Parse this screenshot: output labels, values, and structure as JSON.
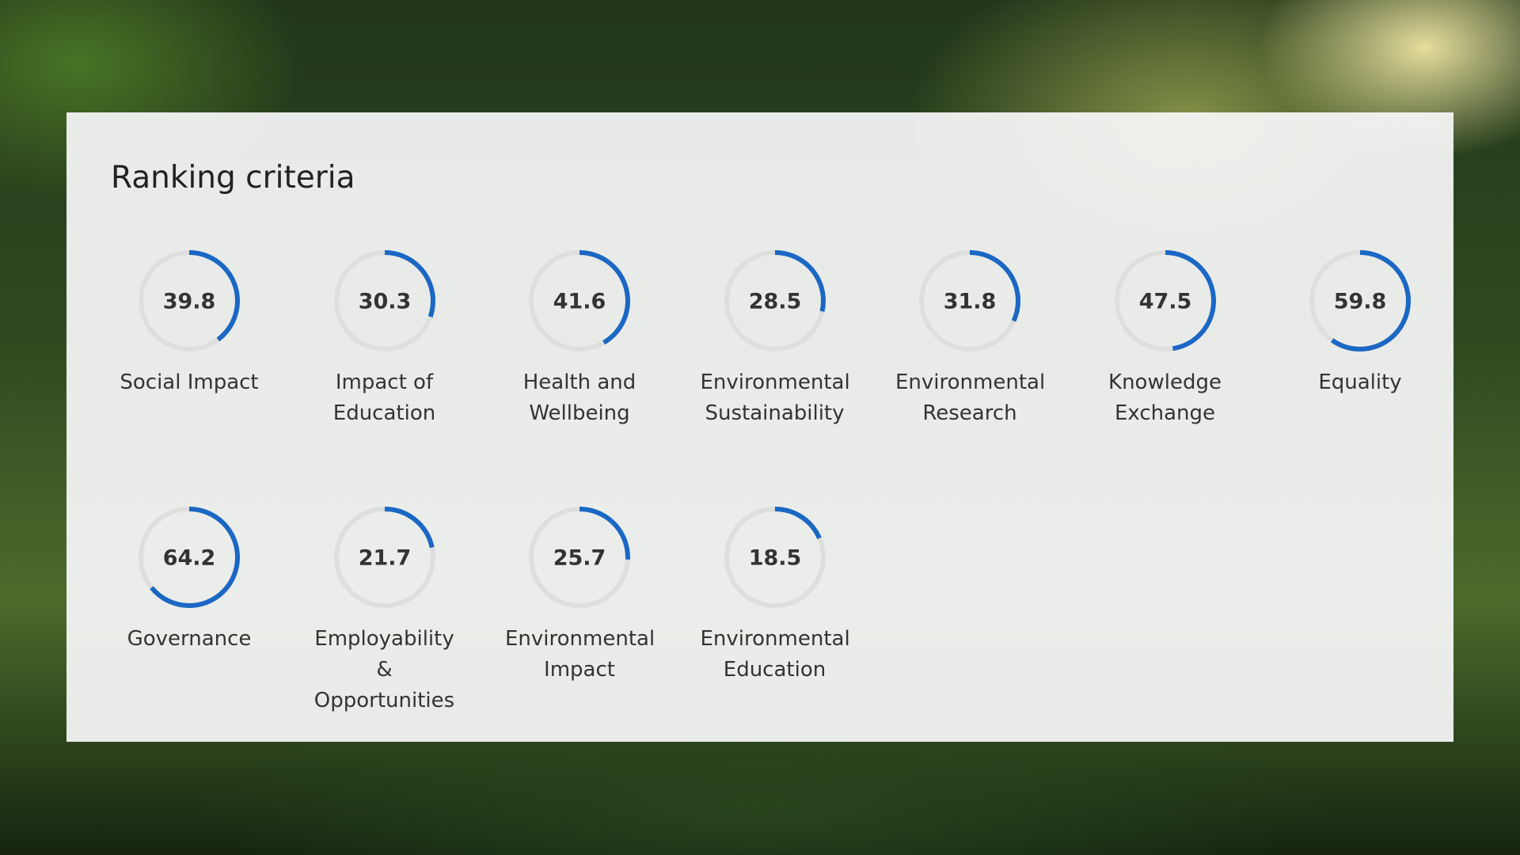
{
  "header": {
    "title": "Ranking criteria"
  },
  "criteria": [
    {
      "label": "Social Impact",
      "value": 39.8
    },
    {
      "label": "Impact of Education",
      "value": 30.3
    },
    {
      "label": "Health and Wellbeing",
      "value": 41.6
    },
    {
      "label": "Environmental Sustainability",
      "value": 28.5
    },
    {
      "label": "Environmental Research",
      "value": 31.8
    },
    {
      "label": "Knowledge Exchange",
      "value": 47.5
    },
    {
      "label": "Equality",
      "value": 59.8
    },
    {
      "label": "Governance",
      "value": 64.2
    },
    {
      "label": "Employability & Opportunities",
      "value": 21.7
    },
    {
      "label": "Environmental Impact",
      "value": 25.7
    },
    {
      "label": "Environmental Education",
      "value": 18.5
    }
  ],
  "ring_color": "#1b67c4",
  "track_color": "#dedede",
  "scale_max": 100
}
